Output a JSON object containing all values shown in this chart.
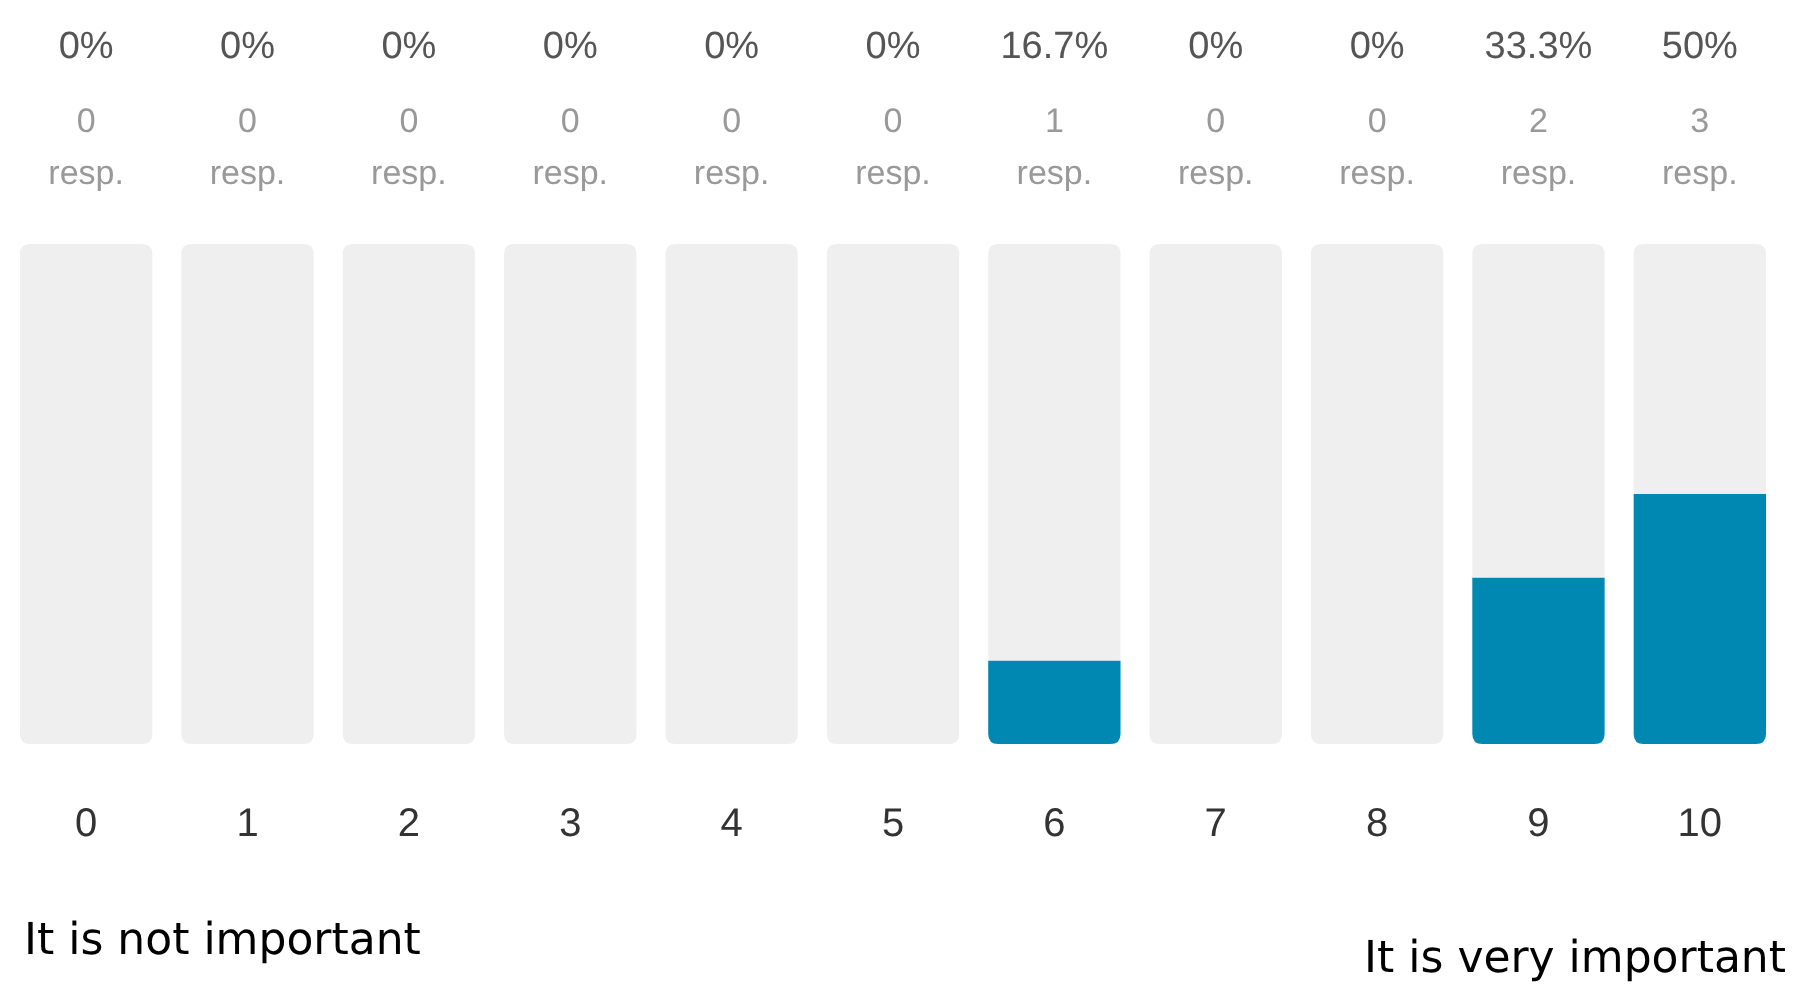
{
  "chart_data": {
    "type": "bar",
    "stacked": true,
    "categories": [
      "0",
      "1",
      "2",
      "3",
      "4",
      "5",
      "6",
      "7",
      "8",
      "9",
      "10"
    ],
    "series": [
      {
        "color": "#0088b3",
        "values": [
          0,
          0,
          0,
          0,
          0,
          0,
          16.7,
          0,
          0,
          33.3,
          50
        ],
        "value_labels": [
          "0%",
          "0%",
          "0%",
          "0%",
          "0%",
          "0%",
          "16.7%",
          "0%",
          "0%",
          "33.3%",
          "50%"
        ]
      },
      {
        "color": "#efefef",
        "values": [
          100,
          100,
          100,
          100,
          100,
          100,
          83.3,
          100,
          100,
          66.7,
          50
        ]
      }
    ],
    "ylim": [
      0,
      100
    ],
    "tick_labels": "x",
    "annotations": [
      "0 resp.",
      "0 resp.",
      "0 resp.",
      "0 resp.",
      "0 resp.",
      "0 resp.",
      "1 resp.",
      "0 resp.",
      "0 resp.",
      "2 resp.",
      "3 resp.",
      "It is not important",
      "It is very important"
    ]
  }
}
